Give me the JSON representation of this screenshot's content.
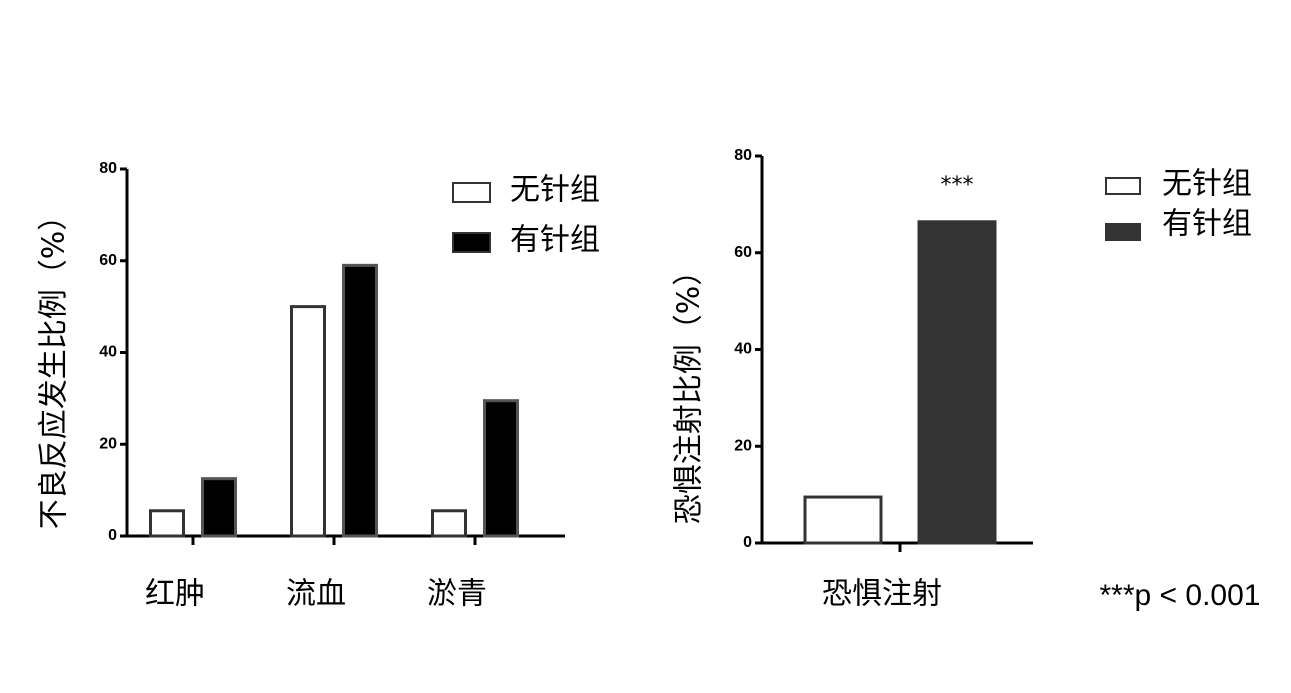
{
  "chart_data": [
    {
      "type": "bar",
      "y_label": "不良反应发生比例（%）",
      "categories": [
        "红肿",
        "流血",
        "淤青"
      ],
      "series": [
        {
          "name": "无针组",
          "color": "#ffffff",
          "values": [
            5.5,
            50,
            5.5
          ]
        },
        {
          "name": "有针组",
          "color": "#000000",
          "values": [
            12.5,
            59,
            29.5
          ]
        }
      ],
      "ylim": [
        0,
        80
      ],
      "yticks": [
        0,
        20,
        40,
        60,
        80
      ]
    },
    {
      "type": "bar",
      "y_label": "恐惧注射比例（%）",
      "categories": [
        "恐惧注射"
      ],
      "series": [
        {
          "name": "无针组",
          "color": "#ffffff",
          "values": [
            9.5
          ]
        },
        {
          "name": "有针组",
          "color": "#333333",
          "values": [
            66.4
          ]
        }
      ],
      "ylim": [
        0,
        80
      ],
      "yticks": [
        0,
        20,
        40,
        60,
        80
      ],
      "annotation": "***",
      "footnote": "***p < 0.001"
    }
  ]
}
